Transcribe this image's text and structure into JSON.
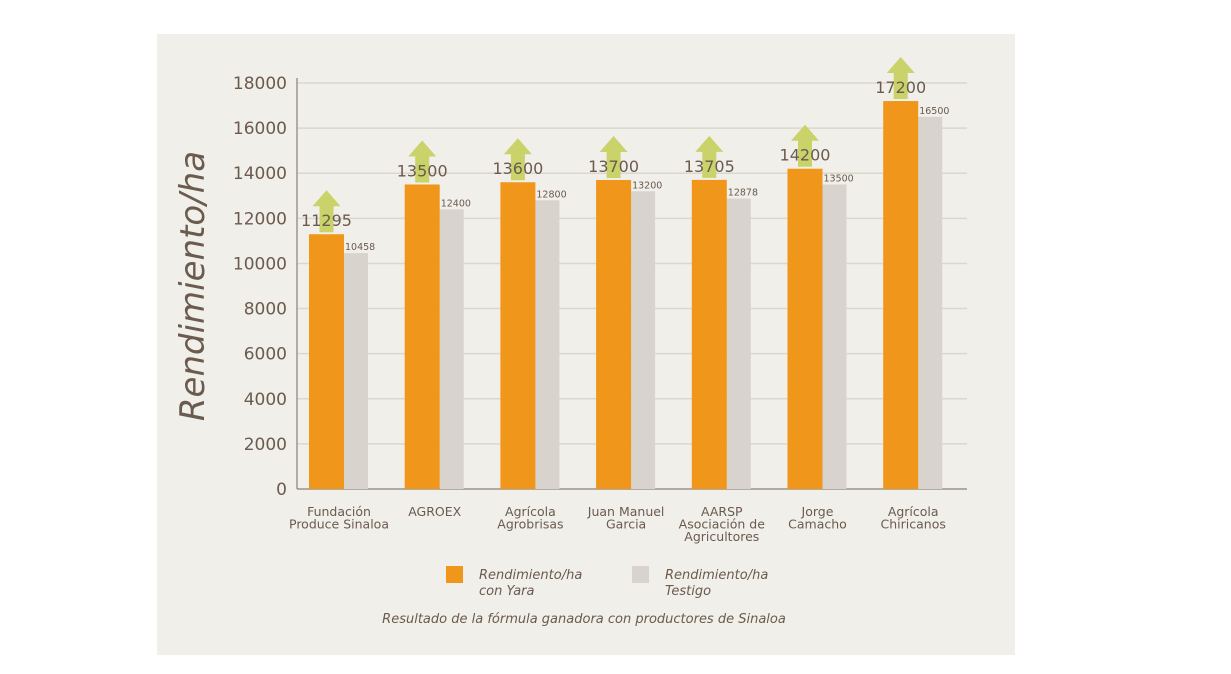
{
  "chart_data": {
    "type": "bar",
    "ylabel": "Rendimiento/ha",
    "ylim": [
      0,
      18000
    ],
    "yticks": [
      0,
      2000,
      4000,
      6000,
      8000,
      10000,
      12000,
      14000,
      16000,
      18000
    ],
    "grid": true,
    "categories": [
      [
        "Fundación",
        "Produce Sinaloa"
      ],
      [
        "AGROEX"
      ],
      [
        "Agrícola",
        "Agrobrisas"
      ],
      [
        "Juan Manuel",
        "Garcia"
      ],
      [
        "AARSP",
        "Asociación de",
        "Agricultores"
      ],
      [
        "Jorge",
        "Camacho"
      ],
      [
        "Agrícola",
        "Chiricanos"
      ]
    ],
    "series": [
      {
        "name": "Rendimiento/ha con Yara",
        "legend_lines": [
          "Rendimiento/ha",
          "con Yara"
        ],
        "color": "#f0961a",
        "values": [
          11295,
          13500,
          13600,
          13700,
          13705,
          14200,
          17200
        ]
      },
      {
        "name": "Rendimiento/ha Testigo",
        "legend_lines": [
          "Rendimiento/ha",
          "Testigo"
        ],
        "color": "#d8d3cd",
        "values": [
          10458,
          12400,
          12800,
          13200,
          12878,
          13500,
          16500
        ]
      }
    ],
    "arrow_color": "#c9d36a",
    "legend_position": "bottom",
    "caption": "Resultado de la fórmula ganadora con productores de Sinaloa"
  }
}
